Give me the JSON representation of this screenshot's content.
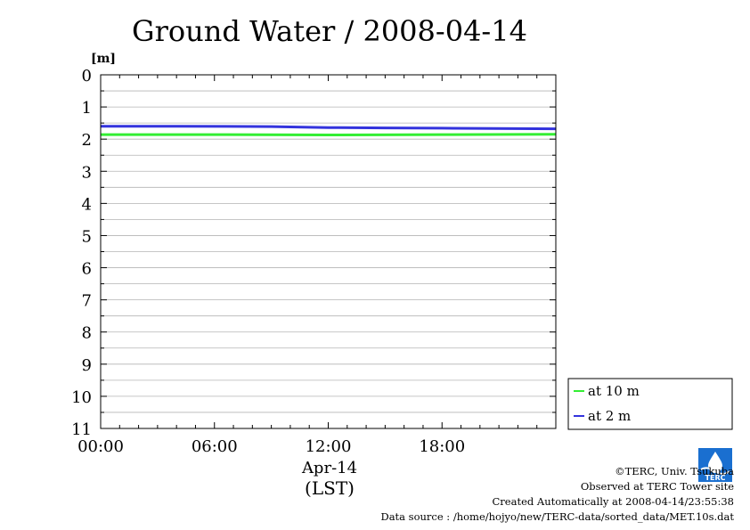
{
  "chart_data": {
    "type": "line",
    "title": "Ground Water / 2008-04-14",
    "ylabel": "[m]",
    "ylim": [
      0,
      11
    ],
    "y_inverted": true,
    "y_ticks": [
      "0",
      "1",
      "2",
      "3",
      "4",
      "5",
      "6",
      "7",
      "8",
      "9",
      "10",
      "11"
    ],
    "x_ticks": [
      "00:00",
      "06:00",
      "12:00",
      "18:00"
    ],
    "x_tick_hours": [
      0,
      6,
      12,
      18
    ],
    "xlim_hours": [
      0,
      24
    ],
    "xlabel_date": "Apr-14",
    "xlabel_unit": "(LST)",
    "grid": true,
    "legend_position": "right-bottom",
    "series": [
      {
        "name": "at 10 m",
        "color": "#33ee33",
        "x": [
          0,
          6,
          12,
          18,
          24
        ],
        "values": [
          1.86,
          1.86,
          1.87,
          1.86,
          1.85
        ]
      },
      {
        "name": "at 2 m",
        "color": "#3333dd",
        "x": [
          0,
          4,
          9,
          12,
          15,
          18,
          24
        ],
        "values": [
          1.6,
          1.6,
          1.61,
          1.64,
          1.65,
          1.66,
          1.68
        ]
      }
    ]
  },
  "footer": {
    "copyright": "©TERC, Univ. Tsukuba",
    "observed": "Observed at TERC Tower site",
    "created": "Created Automatically at 2008-04-14/23:55:38",
    "source": "Data source : /home/hojyo/new/TERC-data/sorted_data/MET.10s.dat"
  },
  "logo": {
    "text": "TERC",
    "color": "#1a6fd0",
    "icon": "terc-logo-icon"
  }
}
